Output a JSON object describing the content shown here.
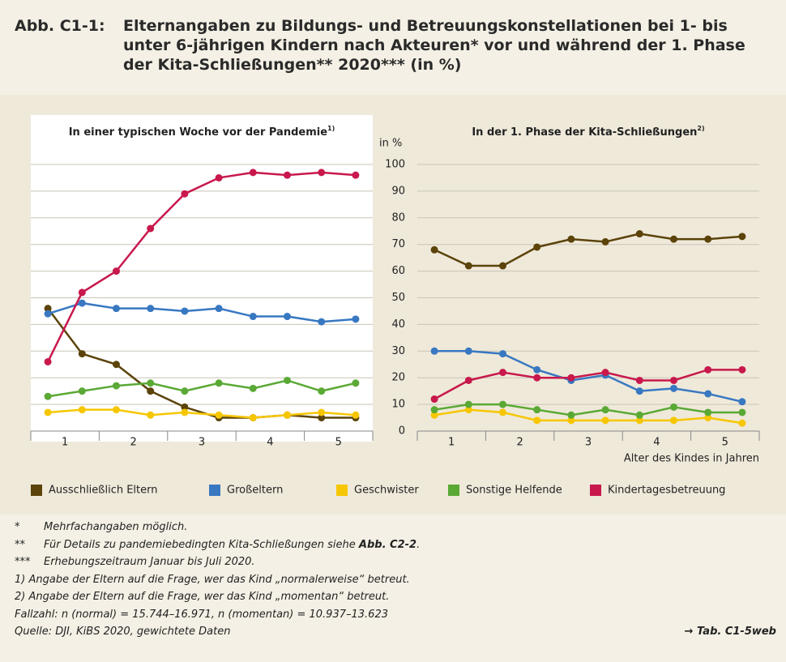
{
  "chart_data": {
    "type": "line",
    "label": "Abb. C1-1:",
    "title": "Elternangaben zu Bildungs- und Betreuungskonstellationen bei 1- bis unter 6-jährigen Kindern nach Akteuren* vor und während der 1. Phase der Kita-Schließungen** 2020*** (in %)",
    "ylabel": "in %",
    "xlabel": "Alter des Kindes in Jahren",
    "x": [
      0.75,
      1.25,
      1.75,
      2.25,
      2.75,
      3.25,
      3.75,
      4.25,
      4.75,
      5.25
    ],
    "xlim": [
      0.5,
      5.5
    ],
    "xticks": [
      1,
      2,
      3,
      4,
      5
    ],
    "ylim": [
      0,
      100
    ],
    "yticks": [
      0,
      10,
      20,
      30,
      40,
      50,
      60,
      70,
      80,
      90,
      100
    ],
    "grid": true,
    "legend": "bottom",
    "series": [
      {
        "name": "Ausschließlich Eltern",
        "color": "#5b4309"
      },
      {
        "name": "Großeltern",
        "color": "#3878c1"
      },
      {
        "name": "Geschwister",
        "color": "#f6c700"
      },
      {
        "name": "Sonstige Helfende",
        "color": "#5aa935"
      },
      {
        "name": "Kindertagesbetreuung",
        "color": "#c8184c"
      }
    ],
    "panels": [
      {
        "title": "In einer typischen Woche vor der Pandemie",
        "title_note": "1)",
        "values": [
          [
            46,
            29,
            25,
            15,
            9,
            5,
            5,
            6,
            5,
            5
          ],
          [
            44,
            48,
            46,
            46,
            45,
            46,
            43,
            43,
            41,
            42
          ],
          [
            7,
            8,
            8,
            6,
            7,
            6,
            5,
            6,
            7,
            6
          ],
          [
            13,
            15,
            17,
            18,
            15,
            18,
            16,
            19,
            15,
            18
          ],
          [
            26,
            52,
            60,
            76,
            89,
            95,
            97,
            96,
            97,
            96
          ]
        ]
      },
      {
        "title": "In der 1. Phase der Kita-Schließungen",
        "title_note": "2)",
        "values": [
          [
            68,
            62,
            62,
            69,
            72,
            71,
            74,
            72,
            72,
            73
          ],
          [
            30,
            30,
            29,
            23,
            19,
            21,
            15,
            16,
            14,
            11
          ],
          [
            6,
            8,
            7,
            4,
            4,
            4,
            4,
            4,
            5,
            3
          ],
          [
            8,
            10,
            10,
            8,
            6,
            8,
            6,
            9,
            7,
            7
          ],
          [
            12,
            19,
            22,
            20,
            20,
            22,
            19,
            19,
            23,
            23
          ]
        ]
      }
    ]
  },
  "notes": [
    {
      "marker": "*",
      "text": "Mehrfachangaben möglich."
    },
    {
      "marker": "**",
      "text": "Für Details zu pandemiebedingten Kita-Schließungen siehe ",
      "ref": "Abb. C2-2",
      "end": "."
    },
    {
      "marker": "***",
      "text": "Erhebungszeitraum Januar bis Juli 2020."
    },
    {
      "text": "1) Angabe der Eltern auf die Frage, wer das Kind „normalerweise“ betreut."
    },
    {
      "text": "2) Angabe der Eltern auf die Frage, wer das Kind „momentan“ betreut."
    },
    {
      "text": "Fallzahl: n (normal) = 15.744–16.971, n (momentan) = 10.937–13.623"
    },
    {
      "text": "Quelle: DJI, KiBS 2020, gewichtete Daten",
      "link": "→ Tab. C1-5web"
    }
  ]
}
